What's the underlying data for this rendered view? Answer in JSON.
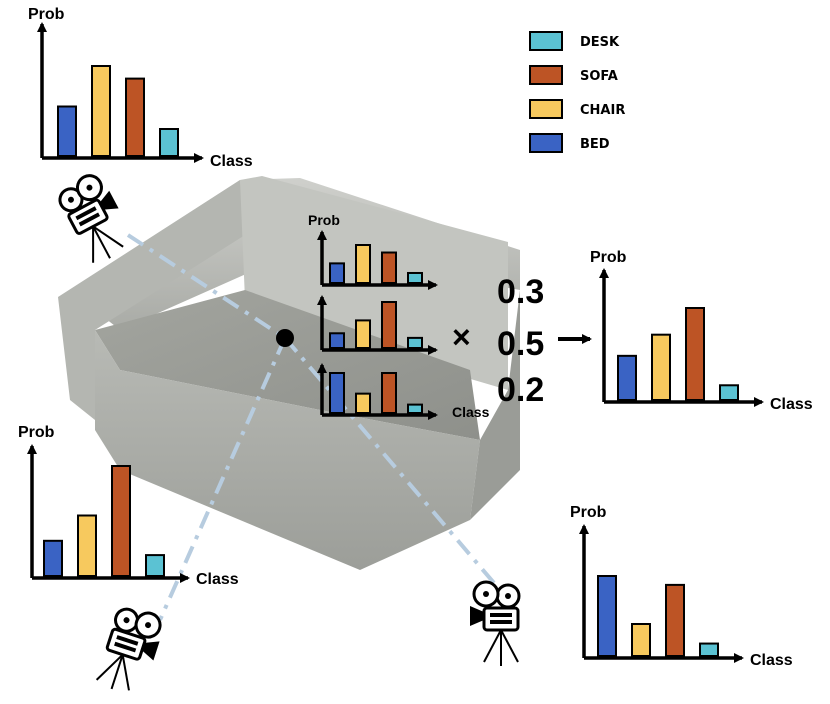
{
  "legend": [
    {
      "label": "DESK",
      "color": "#5bc2d3"
    },
    {
      "label": "SOFA",
      "color": "#bd5425"
    },
    {
      "label": "CHAIR",
      "color": "#f7c95e"
    },
    {
      "label": "BED",
      "color": "#3a63c4"
    }
  ],
  "axis": {
    "y_label": "Prob",
    "x_label": "Class"
  },
  "fusion": {
    "operator": "×",
    "weights": [
      "0.3",
      "0.5",
      "0.2"
    ]
  },
  "chart_data": [
    {
      "type": "bar",
      "view": "top-left camera",
      "categories": [
        "BED",
        "CHAIR",
        "SOFA",
        "DESK"
      ],
      "values": [
        0.55,
        1.0,
        0.86,
        0.3
      ],
      "xlabel": "Class",
      "ylabel": "Prob"
    },
    {
      "type": "bar",
      "view": "bottom-left camera",
      "categories": [
        "BED",
        "CHAIR",
        "SOFA",
        "DESK"
      ],
      "values": [
        0.32,
        0.55,
        1.0,
        0.19
      ],
      "xlabel": "Class",
      "ylabel": "Prob"
    },
    {
      "type": "bar",
      "view": "bottom-right camera",
      "categories": [
        "BED",
        "CHAIR",
        "SOFA",
        "DESK"
      ],
      "values": [
        0.9,
        0.36,
        0.8,
        0.14
      ],
      "xlabel": "Class",
      "ylabel": "Prob"
    },
    {
      "type": "bar",
      "view": "fused result",
      "categories": [
        "BED",
        "CHAIR",
        "SOFA",
        "DESK"
      ],
      "values": [
        0.48,
        0.71,
        1.0,
        0.16
      ],
      "xlabel": "Class",
      "ylabel": "Prob"
    },
    {
      "type": "bar",
      "view": "point per-view 1 (weight 0.3)",
      "categories": [
        "BED",
        "CHAIR",
        "SOFA",
        "DESK"
      ],
      "values": [
        0.47,
        0.91,
        0.73,
        0.24
      ],
      "xlabel": "",
      "ylabel": "Prob"
    },
    {
      "type": "bar",
      "view": "point per-view 2 (weight 0.5)",
      "categories": [
        "BED",
        "CHAIR",
        "SOFA",
        "DESK"
      ],
      "values": [
        0.32,
        0.6,
        1.0,
        0.22
      ],
      "xlabel": "",
      "ylabel": ""
    },
    {
      "type": "bar",
      "view": "point per-view 3 (weight 0.2)",
      "categories": [
        "BED",
        "CHAIR",
        "SOFA",
        "DESK"
      ],
      "values": [
        0.62,
        0.3,
        0.62,
        0.13
      ],
      "xlabel": "Class",
      "ylabel": ""
    }
  ]
}
